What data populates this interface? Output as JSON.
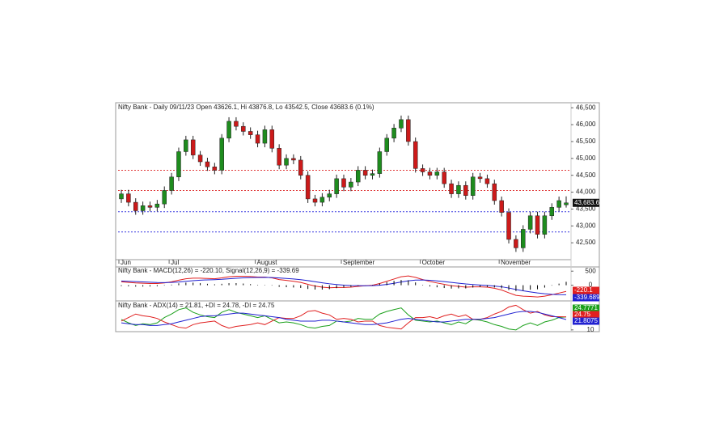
{
  "chart_data": [
    {
      "type": "candlestick",
      "title": "Nifty Bank - Daily 09/11/23 Open 43626.1, Hi 43876.8, Lo 43542.5, Close 43683.6 (0.1%)",
      "categories": [
        "Jun",
        null,
        null,
        null,
        null,
        null,
        null,
        "Jul",
        null,
        null,
        null,
        null,
        null,
        null,
        null,
        null,
        null,
        null,
        null,
        "August",
        null,
        null,
        null,
        null,
        null,
        null,
        null,
        null,
        null,
        null,
        null,
        "September",
        null,
        null,
        null,
        null,
        null,
        null,
        null,
        null,
        null,
        null,
        "October",
        null,
        null,
        null,
        null,
        null,
        null,
        null,
        null,
        null,
        null,
        "November",
        null,
        null,
        null,
        null,
        null,
        null,
        null,
        null,
        null
      ],
      "open": [
        43800,
        43950,
        43700,
        43450,
        43600,
        43550,
        43650,
        44050,
        44450,
        45200,
        45550,
        45100,
        44900,
        44750,
        44650,
        45600,
        46100,
        45950,
        45800,
        45700,
        45450,
        45850,
        45300,
        44800,
        45000,
        44950,
        44500,
        43800,
        43700,
        43850,
        43950,
        44400,
        44150,
        44300,
        44650,
        44500,
        44550,
        45200,
        45600,
        45900,
        46150,
        45500,
        44700,
        44600,
        44500,
        44600,
        44250,
        43950,
        44200,
        43900,
        44450,
        44400,
        44250,
        43750,
        43400,
        42600,
        42350,
        42900,
        43300,
        42750,
        43300,
        43550,
        43626.1
      ],
      "high": [
        44070,
        44070,
        43820,
        43720,
        43720,
        43770,
        44170,
        44570,
        45320,
        45670,
        45670,
        45220,
        45020,
        44870,
        45720,
        46220,
        46220,
        46070,
        45920,
        45820,
        45970,
        45970,
        45420,
        45120,
        45120,
        45070,
        44620,
        43920,
        43970,
        44070,
        44520,
        44520,
        44420,
        44770,
        44770,
        44670,
        45320,
        45720,
        46020,
        46270,
        46270,
        45620,
        44820,
        44720,
        44720,
        44720,
        44370,
        44320,
        44320,
        44570,
        44570,
        44520,
        44370,
        43870,
        43520,
        42720,
        43020,
        43420,
        43420,
        43420,
        43670,
        43870,
        43876.8
      ],
      "low": [
        43680,
        43580,
        43330,
        43330,
        43430,
        43430,
        43530,
        43930,
        44330,
        45080,
        44980,
        44780,
        44630,
        44530,
        44530,
        45480,
        45830,
        45680,
        45580,
        45330,
        45330,
        45180,
        44680,
        44680,
        44830,
        44380,
        43680,
        43580,
        43580,
        43730,
        43830,
        44030,
        44030,
        44180,
        44380,
        44380,
        44430,
        45080,
        45480,
        45780,
        45380,
        44580,
        44480,
        44380,
        44380,
        44130,
        43830,
        43830,
        43780,
        43780,
        44280,
        44130,
        43630,
        43280,
        42480,
        42230,
        42230,
        42780,
        42630,
        42630,
        43180,
        43430,
        43542.5
      ],
      "close": [
        43950,
        43700,
        43450,
        43600,
        43550,
        43650,
        44050,
        44450,
        45200,
        45550,
        45100,
        44900,
        44750,
        44650,
        45600,
        46100,
        45950,
        45800,
        45700,
        45450,
        45850,
        45300,
        44800,
        45000,
        44950,
        44500,
        43800,
        43700,
        43850,
        43950,
        44400,
        44150,
        44300,
        44650,
        44500,
        44550,
        45200,
        45600,
        45900,
        46150,
        45500,
        44700,
        44600,
        44500,
        44600,
        44250,
        43950,
        44200,
        43900,
        44450,
        44400,
        44250,
        43750,
        43400,
        42600,
        42350,
        42900,
        43300,
        42750,
        43300,
        43550,
        43750,
        43683.6
      ],
      "close_label": "43,683.6",
      "up_color": "#1e8c1e",
      "down_color": "#cc1a1a",
      "ylim": [
        42000,
        46650
      ],
      "yticks": [
        {
          "value": 42500,
          "label": "42,500"
        },
        {
          "value": 43000,
          "label": "43,000"
        },
        {
          "value": 43500,
          "label": "43,500"
        },
        {
          "value": 44000,
          "label": "44,000"
        },
        {
          "value": 44500,
          "label": "44,500"
        },
        {
          "value": 45000,
          "label": "45,000"
        },
        {
          "value": 45500,
          "label": "45,500"
        },
        {
          "value": 46000,
          "label": "46,000"
        },
        {
          "value": 46500,
          "label": "46,500"
        }
      ],
      "levels": [
        {
          "value": 44650,
          "color": "#e03a3a"
        },
        {
          "value": 44050,
          "color": "#e03a3a"
        },
        {
          "value": 43420,
          "color": "#3a3ae0"
        },
        {
          "value": 42820,
          "color": "#3a3ae0"
        }
      ]
    },
    {
      "type": "macd",
      "title": "Nifty Bank - MACD(12,26) = -220.10, Signal(12,26,9) = -339.69",
      "series": [
        {
          "name": "MACD",
          "color": "#e02020",
          "values": [
            120,
            100,
            80,
            70,
            60,
            60,
            80,
            120,
            180,
            230,
            250,
            250,
            240,
            230,
            260,
            300,
            320,
            320,
            310,
            290,
            290,
            260,
            200,
            170,
            140,
            100,
            30,
            -30,
            -70,
            -90,
            -80,
            -80,
            -70,
            -40,
            -20,
            0,
            60,
            140,
            220,
            300,
            330,
            280,
            200,
            130,
            80,
            30,
            -20,
            -40,
            -70,
            -60,
            -60,
            -70,
            -110,
            -170,
            -270,
            -360,
            -390,
            -400,
            -420,
            -390,
            -340,
            -280,
            -220.1
          ]
        },
        {
          "name": "Signal",
          "color": "#2020d0",
          "values": [
            150,
            140,
            130,
            118,
            106,
            97,
            94,
            99,
            115,
            138,
            160,
            178,
            190,
            198,
            210,
            228,
            246,
            261,
            271,
            275,
            278,
            274,
            259,
            241,
            221,
            197,
            164,
            125,
            86,
            51,
            25,
            4,
            -11,
            -17,
            -18,
            -14,
            0,
            28,
            66,
            113,
            156,
            181,
            185,
            174,
            155,
            130,
            100,
            72,
            44,
            23,
            6,
            -9,
            -29,
            -57,
            -100,
            -152,
            -200,
            -240,
            -276,
            -305,
            -325,
            -336,
            -339.689
          ]
        }
      ],
      "histogram_color": "#000000",
      "ylim": [
        -530,
        650
      ],
      "yticks": [
        500,
        0
      ]
    },
    {
      "type": "adx",
      "title": "Nifty Bank - ADX(14) = 21.81, +DI = 24.78, -DI = 24.75",
      "series": [
        {
          "name": "+DI",
          "color": "#1aa01a",
          "values": [
            22,
            18,
            15,
            17,
            16,
            18,
            24,
            28,
            33,
            35,
            30,
            27,
            25,
            24,
            30,
            33,
            30,
            28,
            26,
            24,
            26,
            22,
            18,
            19,
            18,
            16,
            13,
            12,
            14,
            15,
            20,
            19,
            20,
            23,
            22,
            22,
            28,
            31,
            33,
            35,
            27,
            21,
            20,
            19,
            20,
            18,
            16,
            19,
            17,
            22,
            21,
            19,
            16,
            14,
            11,
            10,
            15,
            18,
            15,
            19,
            21,
            24,
            24.7771
          ]
        },
        {
          "name": "-DI",
          "color": "#e02020",
          "values": [
            20,
            24,
            28,
            26,
            25,
            23,
            19,
            16,
            13,
            12,
            16,
            18,
            19,
            20,
            15,
            12,
            14,
            15,
            16,
            18,
            16,
            20,
            24,
            23,
            23,
            26,
            31,
            32,
            29,
            27,
            22,
            23,
            22,
            19,
            20,
            20,
            15,
            13,
            12,
            11,
            18,
            24,
            24,
            25,
            23,
            26,
            28,
            25,
            27,
            22,
            22,
            24,
            28,
            31,
            36,
            38,
            33,
            29,
            31,
            27,
            25,
            25,
            24.75
          ]
        },
        {
          "name": "ADX",
          "color": "#2020d0",
          "values": [
            18,
            17,
            16,
            16,
            15,
            15,
            16,
            17,
            19,
            21,
            23,
            25,
            26,
            26,
            27,
            28,
            29,
            29,
            28,
            27,
            26,
            25,
            24,
            22,
            21,
            20,
            20,
            20,
            21,
            21,
            20,
            19,
            18,
            17,
            16,
            16,
            17,
            18,
            20,
            22,
            23,
            22,
            21,
            20,
            19,
            19,
            20,
            21,
            22,
            22,
            22,
            23,
            24,
            26,
            28,
            30,
            31,
            31,
            30,
            28,
            26,
            24,
            21.8075
          ]
        }
      ],
      "ylim": [
        8,
        42
      ],
      "yticks": [
        10
      ]
    }
  ]
}
